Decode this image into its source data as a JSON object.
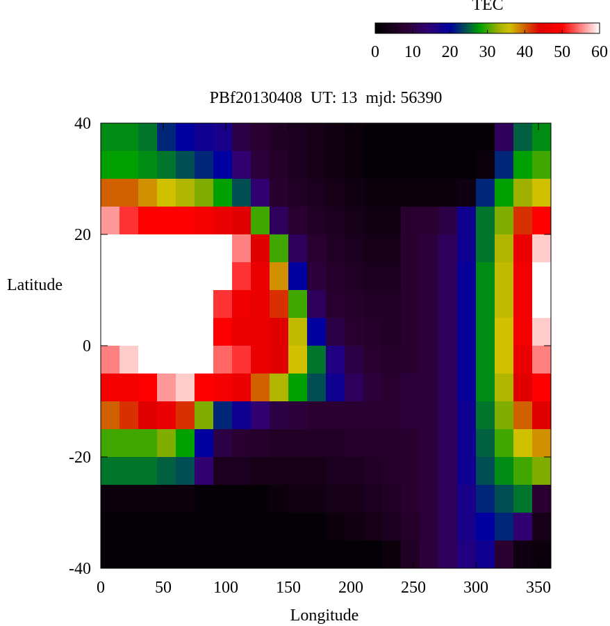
{
  "chart_data": {
    "type": "heatmap",
    "title": "PBf20130408  UT: 13  mjd: 56390",
    "x_label": "Longitude",
    "y_label": "Latitude",
    "colorbar_label": "TEC",
    "xlim": [
      0,
      360
    ],
    "xticks": [
      0,
      50,
      100,
      150,
      200,
      250,
      300,
      350
    ],
    "ylim": [
      -40,
      40
    ],
    "yticks": [
      -40,
      -20,
      0,
      20,
      40
    ],
    "zlim": [
      0,
      60
    ],
    "zticks": [
      0,
      10,
      20,
      30,
      40,
      50,
      60
    ],
    "colormap": [
      [
        0,
        "#000000"
      ],
      [
        8,
        "#2a0030"
      ],
      [
        14,
        "#300070"
      ],
      [
        20,
        "#0000a0"
      ],
      [
        25,
        "#006040"
      ],
      [
        28,
        "#00a000"
      ],
      [
        33,
        "#a0b000"
      ],
      [
        36,
        "#d0c000"
      ],
      [
        40,
        "#d06000"
      ],
      [
        44,
        "#e00000"
      ],
      [
        50,
        "#ff0000"
      ],
      [
        55,
        "#ff8080"
      ],
      [
        60,
        "#ffffff"
      ]
    ],
    "x": [
      7.5,
      22.5,
      37.5,
      52.5,
      67.5,
      82.5,
      97.5,
      112.5,
      127.5,
      142.5,
      157.5,
      172.5,
      187.5,
      202.5,
      217.5,
      232.5,
      247.5,
      262.5,
      277.5,
      292.5,
      307.5,
      322.5,
      337.5,
      352.5
    ],
    "y": [
      37.5,
      32.5,
      27.5,
      22.5,
      17.5,
      12.5,
      7.5,
      2.5,
      -2.5,
      -7.5,
      -12.5,
      -17.5,
      -22.5,
      -27.5,
      -32.5,
      -37.5
    ],
    "z": [
      [
        27,
        27,
        26,
        22,
        20,
        18,
        17,
        10,
        8,
        6,
        5,
        4,
        3,
        2,
        1,
        1,
        1,
        1,
        1,
        1,
        1,
        12,
        25,
        27
      ],
      [
        28,
        28,
        27,
        26,
        24,
        22,
        20,
        14,
        9,
        7,
        5,
        4,
        3,
        2,
        1,
        1,
        1,
        1,
        1,
        1,
        2,
        22,
        28,
        30
      ],
      [
        40,
        40,
        38,
        36,
        34,
        32,
        28,
        24,
        14,
        8,
        6,
        5,
        4,
        3,
        2,
        2,
        2,
        2,
        2,
        3,
        22,
        28,
        33,
        36
      ],
      [
        56,
        52,
        50,
        50,
        50,
        48,
        46,
        44,
        30,
        12,
        8,
        6,
        5,
        4,
        3,
        3,
        8,
        8,
        10,
        18,
        26,
        32,
        42,
        50
      ],
      [
        60,
        60,
        60,
        60,
        60,
        60,
        60,
        55,
        44,
        30,
        12,
        8,
        6,
        5,
        4,
        4,
        8,
        9,
        12,
        18,
        26,
        34,
        46,
        58
      ],
      [
        60,
        60,
        60,
        60,
        60,
        60,
        60,
        52,
        46,
        38,
        20,
        9,
        7,
        6,
        5,
        5,
        8,
        9,
        12,
        19,
        27,
        35,
        48,
        60
      ],
      [
        60,
        60,
        60,
        60,
        60,
        60,
        52,
        47,
        46,
        42,
        30,
        12,
        8,
        7,
        6,
        6,
        8,
        9,
        12,
        19,
        27,
        35,
        48,
        60
      ],
      [
        60,
        60,
        60,
        60,
        60,
        60,
        50,
        46,
        46,
        44,
        35,
        20,
        10,
        8,
        7,
        6,
        8,
        9,
        12,
        19,
        27,
        36,
        48,
        58
      ],
      [
        55,
        58,
        60,
        60,
        60,
        60,
        54,
        52,
        46,
        44,
        36,
        26,
        16,
        10,
        8,
        7,
        8,
        9,
        12,
        19,
        27,
        36,
        46,
        55
      ],
      [
        48,
        48,
        50,
        56,
        58,
        50,
        48,
        46,
        40,
        34,
        28,
        24,
        18,
        12,
        9,
        8,
        9,
        9,
        12,
        19,
        27,
        34,
        44,
        50
      ],
      [
        40,
        42,
        44,
        46,
        42,
        32,
        22,
        18,
        14,
        10,
        9,
        8,
        8,
        8,
        8,
        8,
        9,
        9,
        12,
        18,
        26,
        32,
        40,
        44
      ],
      [
        30,
        30,
        30,
        32,
        28,
        20,
        10,
        8,
        7,
        6,
        6,
        6,
        6,
        7,
        7,
        7,
        8,
        9,
        12,
        18,
        25,
        30,
        36,
        38
      ],
      [
        26,
        26,
        26,
        25,
        24,
        14,
        5,
        5,
        4,
        4,
        4,
        4,
        5,
        5,
        6,
        7,
        8,
        9,
        12,
        18,
        24,
        27,
        30,
        32
      ],
      [
        2,
        2,
        2,
        2,
        2,
        1,
        1,
        1,
        1,
        2,
        3,
        3,
        4,
        4,
        5,
        6,
        8,
        9,
        12,
        17,
        22,
        24,
        26,
        8
      ],
      [
        1,
        1,
        1,
        1,
        1,
        1,
        1,
        1,
        1,
        1,
        1,
        1,
        2,
        3,
        4,
        5,
        7,
        9,
        12,
        17,
        20,
        22,
        14,
        4
      ],
      [
        1,
        1,
        1,
        1,
        1,
        1,
        1,
        1,
        1,
        1,
        1,
        1,
        1,
        1,
        1,
        2,
        6,
        9,
        12,
        16,
        18,
        8,
        3,
        2
      ]
    ]
  }
}
